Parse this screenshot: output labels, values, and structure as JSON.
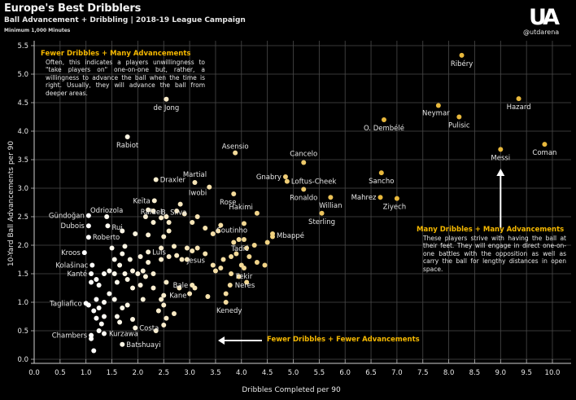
{
  "header": {
    "title": "Europe's Best Dribblers",
    "subtitle": "Ball Advancement + Dribbling | 2018-19 League Campaign",
    "note": "Minimum 1,000 Minutes",
    "logo": "UA",
    "handle": "@utdarena"
  },
  "annotations": {
    "top_left": {
      "heading": "Fewer Dribbles + Many Advancements",
      "body": "Often, this indicates a players unwillingness to \"take players on\" one-on-one but, rather, a willingness to advance the ball when the time is right. Usually, they will advance the ball from deeper areas."
    },
    "bottom_right": {
      "heading": "Many Dribbles + Many Advancements",
      "body": "These players strive with having the ball at their feet. They will engage in direct one-on-one battles with the opposition as well as carry the ball for lengthy distances in open space."
    },
    "bottom_arrow": {
      "heading": "Fewer Dribbles + Fewer Advancements"
    }
  },
  "colors": {
    "background": "#000000",
    "grid": "#4a4a4a",
    "accent": "#f5b800"
  },
  "chart_data": {
    "type": "scatter",
    "title": "Europe's Best Dribblers",
    "xlabel": "Dribbles Completed per 90",
    "ylabel": "10-Yard Ball Advancements per 90",
    "xlim": [
      0,
      10
    ],
    "ylim": [
      0,
      5.5
    ],
    "xticks": [
      "0.0",
      "0.5",
      "1.0",
      "1.5",
      "2.0",
      "2.5",
      "3.0",
      "3.5",
      "4.0",
      "4.5",
      "5.0",
      "5.5",
      "6.0",
      "6.5",
      "7.0",
      "7.5",
      "8.0",
      "8.5",
      "9.0",
      "9.5",
      "10.0"
    ],
    "yticks": [
      "0.0",
      "0.5",
      "1.0",
      "1.5",
      "2.0",
      "2.5",
      "3.0",
      "3.5",
      "4.0",
      "4.5",
      "5.0",
      "5.5"
    ],
    "grid": true,
    "color_scale": "white (low dribbles) to gold (high dribbles)",
    "labeled_points": [
      {
        "name": "Ribéry",
        "x": 8.25,
        "y": 5.33
      },
      {
        "name": "de Jong",
        "x": 2.55,
        "y": 4.56
      },
      {
        "name": "Hazard",
        "x": 9.35,
        "y": 4.57
      },
      {
        "name": "Neymar",
        "x": 7.8,
        "y": 4.45
      },
      {
        "name": "Pulisic",
        "x": 8.2,
        "y": 4.25
      },
      {
        "name": "O. Dembélé",
        "x": 6.75,
        "y": 4.2
      },
      {
        "name": "Rabiot",
        "x": 1.8,
        "y": 3.9
      },
      {
        "name": "Coman",
        "x": 9.85,
        "y": 3.77
      },
      {
        "name": "Messi",
        "x": 9.0,
        "y": 3.68
      },
      {
        "name": "Asensio",
        "x": 3.88,
        "y": 3.62
      },
      {
        "name": "Cancelo",
        "x": 5.2,
        "y": 3.45
      },
      {
        "name": "Sancho",
        "x": 6.7,
        "y": 3.27
      },
      {
        "name": "Gnabry",
        "x": 4.85,
        "y": 3.2
      },
      {
        "name": "Loftus-Cheek",
        "x": 4.88,
        "y": 3.12
      },
      {
        "name": "Martial",
        "x": 3.1,
        "y": 3.1
      },
      {
        "name": "Draxler",
        "x": 2.35,
        "y": 3.15
      },
      {
        "name": "Iwobi",
        "x": 3.38,
        "y": 3.02
      },
      {
        "name": "Ronaldo",
        "x": 5.2,
        "y": 2.98
      },
      {
        "name": "Keïta",
        "x": 2.32,
        "y": 2.78
      },
      {
        "name": "Rose",
        "x": 3.85,
        "y": 2.9
      },
      {
        "name": "Willian",
        "x": 5.72,
        "y": 2.84
      },
      {
        "name": "Mahrez",
        "x": 6.68,
        "y": 2.84
      },
      {
        "name": "Ziyech",
        "x": 7.0,
        "y": 2.82
      },
      {
        "name": "B. Silva",
        "x": 2.82,
        "y": 2.72
      },
      {
        "name": "Rafael",
        "x": 2.55,
        "y": 2.5
      },
      {
        "name": "Hakimi",
        "x": 4.3,
        "y": 2.56
      },
      {
        "name": "Sterling",
        "x": 5.55,
        "y": 2.56
      },
      {
        "name": "Gündoğan",
        "x": 1.05,
        "y": 2.52
      },
      {
        "name": "Odriozola",
        "x": 1.4,
        "y": 2.5
      },
      {
        "name": "Coutinho",
        "x": 4.05,
        "y": 2.38
      },
      {
        "name": "Dubois",
        "x": 1.05,
        "y": 2.34
      },
      {
        "name": "Rui",
        "x": 1.42,
        "y": 2.34
      },
      {
        "name": "Mbappé",
        "x": 4.6,
        "y": 2.2
      },
      {
        "name": "Roberto",
        "x": 1.05,
        "y": 2.14
      },
      {
        "name": "Tadić",
        "x": 4.05,
        "y": 2.1
      },
      {
        "name": "Kroos",
        "x": 0.97,
        "y": 1.87
      },
      {
        "name": "Luis",
        "x": 2.2,
        "y": 1.88
      },
      {
        "name": "Jesus",
        "x": 2.95,
        "y": 1.75
      },
      {
        "name": "Kolašinac",
        "x": 1.12,
        "y": 1.65
      },
      {
        "name": "Fekir",
        "x": 4.05,
        "y": 1.6
      },
      {
        "name": "Kanté",
        "x": 1.1,
        "y": 1.5
      },
      {
        "name": "Bale",
        "x": 3.05,
        "y": 1.3
      },
      {
        "name": "Neres",
        "x": 3.78,
        "y": 1.3
      },
      {
        "name": "Kane",
        "x": 2.5,
        "y": 1.12
      },
      {
        "name": "Kenedy",
        "x": 3.7,
        "y": 1.0
      },
      {
        "name": "Tagliafico",
        "x": 1.0,
        "y": 0.98
      },
      {
        "name": "Costa",
        "x": 1.95,
        "y": 0.55
      },
      {
        "name": "Chambers",
        "x": 1.1,
        "y": 0.42
      },
      {
        "name": "Kurzawa",
        "x": 1.35,
        "y": 0.45
      },
      {
        "name": "Batshuayi",
        "x": 1.7,
        "y": 0.26
      }
    ],
    "unlabeled_points": [
      [
        1.15,
        0.15
      ],
      [
        1.1,
        0.36
      ],
      [
        1.25,
        0.5
      ],
      [
        1.3,
        0.62
      ],
      [
        1.2,
        0.72
      ],
      [
        1.35,
        0.75
      ],
      [
        1.25,
        0.9
      ],
      [
        1.15,
        0.85
      ],
      [
        1.05,
        0.95
      ],
      [
        1.35,
        1.0
      ],
      [
        1.2,
        1.05
      ],
      [
        1.45,
        1.15
      ],
      [
        1.55,
        1.05
      ],
      [
        1.7,
        0.9
      ],
      [
        1.8,
        0.95
      ],
      [
        1.65,
        0.65
      ],
      [
        1.9,
        0.7
      ],
      [
        1.6,
        0.75
      ],
      [
        2.35,
        0.5
      ],
      [
        2.4,
        0.85
      ],
      [
        1.1,
        1.35
      ],
      [
        1.2,
        1.4
      ],
      [
        1.25,
        1.3
      ],
      [
        1.35,
        1.5
      ],
      [
        1.45,
        1.55
      ],
      [
        1.55,
        1.5
      ],
      [
        1.6,
        1.35
      ],
      [
        1.75,
        1.5
      ],
      [
        1.8,
        1.4
      ],
      [
        1.9,
        1.55
      ],
      [
        2.0,
        1.5
      ],
      [
        2.1,
        1.55
      ],
      [
        2.15,
        1.45
      ],
      [
        2.3,
        1.5
      ],
      [
        1.65,
        1.65
      ],
      [
        1.55,
        1.75
      ],
      [
        1.7,
        1.85
      ],
      [
        1.5,
        1.95
      ],
      [
        1.75,
        1.98
      ],
      [
        1.85,
        1.75
      ],
      [
        2.2,
        1.7
      ],
      [
        2.05,
        1.8
      ],
      [
        2.45,
        1.75
      ],
      [
        2.6,
        1.8
      ],
      [
        2.1,
        1.05
      ],
      [
        2.3,
        1.25
      ],
      [
        2.05,
        1.3
      ],
      [
        2.55,
        1.35
      ],
      [
        2.8,
        1.25
      ],
      [
        1.7,
        2.25
      ],
      [
        1.95,
        2.2
      ],
      [
        2.2,
        2.18
      ],
      [
        2.5,
        2.15
      ],
      [
        2.6,
        2.25
      ],
      [
        2.15,
        2.5
      ],
      [
        2.3,
        2.4
      ],
      [
        2.6,
        2.4
      ],
      [
        2.45,
        1.95
      ],
      [
        2.7,
        1.98
      ],
      [
        2.75,
        1.82
      ],
      [
        2.85,
        1.75
      ],
      [
        2.95,
        1.95
      ],
      [
        2.2,
        2.62
      ],
      [
        2.3,
        2.6
      ],
      [
        2.45,
        2.48
      ],
      [
        2.75,
        2.6
      ],
      [
        2.9,
        2.55
      ],
      [
        3.05,
        2.4
      ],
      [
        3.15,
        2.5
      ],
      [
        3.3,
        2.3
      ],
      [
        3.45,
        2.2
      ],
      [
        3.55,
        2.25
      ],
      [
        3.6,
        2.35
      ],
      [
        3.05,
        1.9
      ],
      [
        3.15,
        1.95
      ],
      [
        3.3,
        1.85
      ],
      [
        3.45,
        1.65
      ],
      [
        3.5,
        1.55
      ],
      [
        3.6,
        1.6
      ],
      [
        3.65,
        1.75
      ],
      [
        3.8,
        1.8
      ],
      [
        3.9,
        1.85
      ],
      [
        4.1,
        1.95
      ],
      [
        4.15,
        1.8
      ],
      [
        4.3,
        1.7
      ],
      [
        4.45,
        1.65
      ],
      [
        3.0,
        1.15
      ],
      [
        3.1,
        1.25
      ],
      [
        3.35,
        1.1
      ],
      [
        3.7,
        1.15
      ],
      [
        3.8,
        1.5
      ],
      [
        3.95,
        1.45
      ],
      [
        4.1,
        1.35
      ],
      [
        4.0,
        1.65
      ],
      [
        3.85,
        2.05
      ],
      [
        3.95,
        2.1
      ],
      [
        4.25,
        2.0
      ],
      [
        4.5,
        2.05
      ],
      [
        4.6,
        2.15
      ],
      [
        1.9,
        1.25
      ],
      [
        2.5,
        0.95
      ],
      [
        2.45,
        1.05
      ],
      [
        2.55,
        0.72
      ],
      [
        2.5,
        0.6
      ],
      [
        2.7,
        0.8
      ]
    ]
  }
}
